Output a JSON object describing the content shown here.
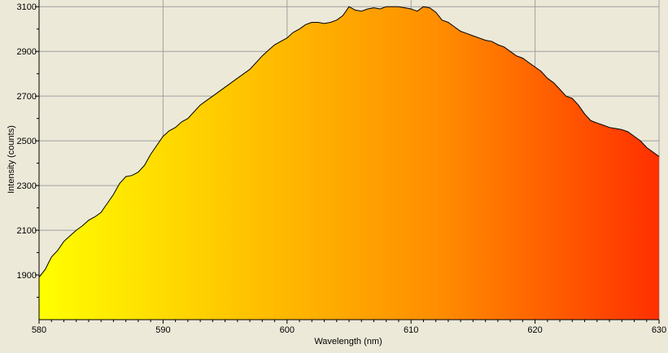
{
  "chart_data": {
    "type": "area",
    "title": "",
    "xlabel": "Wavelength (nm)",
    "ylabel": "Intensity (counts)",
    "xlim": [
      580,
      630
    ],
    "ylim": [
      1700,
      3130
    ],
    "x_ticks": [
      580,
      590,
      600,
      610,
      620,
      630
    ],
    "y_ticks": [
      1900,
      2100,
      2300,
      2500,
      2700,
      2900,
      3100
    ],
    "grid": true,
    "fill": "wavelength color gradient (yellow to red)",
    "series": [
      {
        "values_x": [
          580.0,
          580.5,
          581.0,
          581.5,
          582.0,
          582.5,
          583.0,
          583.5,
          584.0,
          584.5,
          585.0,
          585.5,
          586.0,
          586.5,
          587.0,
          587.5,
          588.0,
          588.5,
          589.0,
          589.5,
          590.0,
          590.5,
          591.0,
          591.5,
          592.0,
          592.5,
          593.0,
          593.5,
          594.0,
          594.5,
          595.0,
          595.5,
          596.0,
          596.5,
          597.0,
          597.5,
          598.0,
          598.5,
          599.0,
          599.5,
          600.0,
          600.5,
          601.0,
          601.5,
          602.0,
          602.5,
          603.0,
          603.5,
          604.0,
          604.5,
          605.0,
          605.5,
          606.0,
          606.5,
          607.0,
          607.5,
          608.0,
          608.5,
          609.0,
          609.5,
          610.0,
          610.5,
          611.0,
          611.5,
          612.0,
          612.5,
          613.0,
          613.5,
          614.0,
          614.5,
          615.0,
          615.5,
          616.0,
          616.5,
          617.0,
          617.5,
          618.0,
          618.5,
          619.0,
          619.5,
          620.0,
          620.5,
          621.0,
          621.5,
          622.0,
          622.5,
          623.0,
          623.5,
          624.0,
          624.5,
          625.0,
          625.5,
          626.0,
          626.5,
          627.0,
          627.5,
          628.0,
          628.5,
          629.0,
          629.5,
          630.0
        ],
        "values_y": [
          1890,
          1925,
          1980,
          2010,
          2050,
          2075,
          2100,
          2120,
          2145,
          2160,
          2180,
          2220,
          2260,
          2310,
          2340,
          2345,
          2360,
          2390,
          2440,
          2480,
          2520,
          2545,
          2560,
          2585,
          2600,
          2630,
          2660,
          2680,
          2700,
          2720,
          2740,
          2760,
          2780,
          2800,
          2820,
          2850,
          2880,
          2905,
          2930,
          2945,
          2960,
          2985,
          3000,
          3020,
          3030,
          3030,
          3025,
          3030,
          3040,
          3060,
          3100,
          3085,
          3080,
          3090,
          3095,
          3090,
          3100,
          3100,
          3100,
          3095,
          3090,
          3080,
          3100,
          3095,
          3075,
          3040,
          3030,
          3010,
          2990,
          2980,
          2970,
          2960,
          2950,
          2945,
          2930,
          2920,
          2900,
          2880,
          2870,
          2850,
          2830,
          2810,
          2780,
          2760,
          2730,
          2700,
          2690,
          2660,
          2620,
          2590,
          2580,
          2570,
          2560,
          2555,
          2550,
          2540,
          2520,
          2500,
          2470,
          2450,
          2430
        ]
      }
    ]
  }
}
